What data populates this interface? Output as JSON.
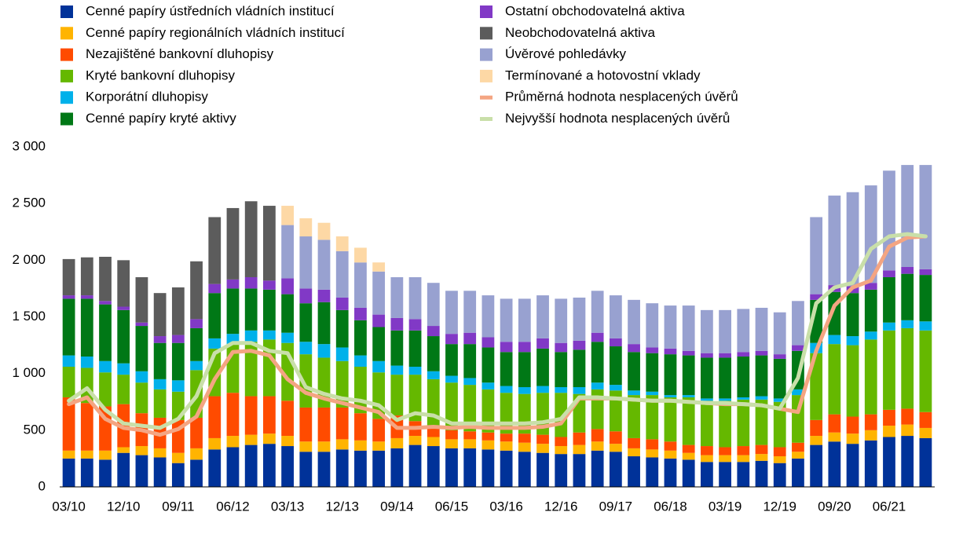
{
  "chart_data": {
    "type": "bar",
    "stacked": true,
    "categories": [
      "03/10",
      null,
      null,
      "12/10",
      null,
      null,
      "09/11",
      null,
      null,
      "06/12",
      null,
      null,
      "03/13",
      null,
      null,
      "12/13",
      null,
      null,
      "09/14",
      null,
      null,
      "06/15",
      null,
      null,
      "03/16",
      null,
      null,
      "12/16",
      null,
      null,
      "09/17",
      null,
      null,
      "06/18",
      null,
      null,
      "03/19",
      null,
      null,
      "12/19",
      null,
      null,
      "09/20",
      null,
      null,
      "06/21",
      null,
      null
    ],
    "ylim": [
      0,
      3000
    ],
    "yticks": [
      0,
      500,
      {
        "value": 1000,
        "label": "1 000"
      },
      {
        "value": 1500,
        "label": "1 500"
      },
      {
        "value": 2000,
        "label": "2 000"
      },
      {
        "value": 2500,
        "label": "2 500"
      },
      {
        "value": 3000,
        "label": "3 000"
      }
    ],
    "series": [
      {
        "name": "Cenné papíry ústředních vládních institucí",
        "type": "bar",
        "color": "#003299",
        "values": [
          250,
          250,
          240,
          300,
          280,
          260,
          210,
          240,
          330,
          350,
          370,
          380,
          360,
          310,
          310,
          330,
          320,
          320,
          340,
          370,
          360,
          340,
          340,
          330,
          320,
          310,
          300,
          290,
          290,
          320,
          310,
          270,
          260,
          250,
          240,
          220,
          220,
          220,
          230,
          210,
          250,
          370,
          400,
          380,
          410,
          440,
          450,
          430
        ]
      },
      {
        "name": "Cenné papíry regionálních vládních institucí",
        "type": "bar",
        "color": "#ffb400",
        "values": [
          70,
          70,
          80,
          50,
          80,
          80,
          90,
          100,
          100,
          100,
          90,
          90,
          90,
          90,
          90,
          90,
          90,
          80,
          90,
          80,
          80,
          80,
          80,
          80,
          80,
          80,
          80,
          70,
          80,
          80,
          70,
          70,
          70,
          70,
          60,
          60,
          60,
          60,
          60,
          60,
          60,
          80,
          80,
          90,
          90,
          100,
          100,
          90
        ]
      },
      {
        "name": "Nezajištěné bankovní dluhopisy",
        "type": "bar",
        "color": "#ff4b00",
        "values": [
          470,
          420,
          390,
          380,
          290,
          270,
          290,
          270,
          370,
          380,
          340,
          330,
          310,
          300,
          300,
          280,
          240,
          200,
          200,
          130,
          100,
          80,
          70,
          70,
          70,
          80,
          80,
          80,
          110,
          110,
          110,
          90,
          90,
          80,
          70,
          80,
          70,
          80,
          80,
          80,
          80,
          140,
          160,
          150,
          140,
          140,
          140,
          140
        ]
      },
      {
        "name": "Kryté bankovní dluhopisy",
        "type": "bar",
        "color": "#65b800",
        "values": [
          270,
          310,
          300,
          260,
          270,
          250,
          250,
          420,
          420,
          430,
          480,
          500,
          510,
          470,
          440,
          410,
          410,
          410,
          360,
          410,
          410,
          420,
          410,
          380,
          360,
          350,
          370,
          390,
          340,
          350,
          360,
          380,
          390,
          390,
          420,
          400,
          410,
          410,
          400,
          400,
          420,
          590,
          620,
          630,
          660,
          700,
          710,
          720
        ]
      },
      {
        "name": "Korporátní dluhopisy",
        "type": "bar",
        "color": "#00b1ea",
        "values": [
          100,
          100,
          100,
          100,
          100,
          90,
          100,
          80,
          90,
          90,
          100,
          80,
          90,
          110,
          120,
          120,
          100,
          100,
          80,
          70,
          70,
          60,
          60,
          60,
          60,
          60,
          60,
          50,
          60,
          60,
          50,
          40,
          30,
          20,
          20,
          20,
          20,
          20,
          30,
          30,
          50,
          90,
          80,
          80,
          70,
          70,
          70,
          80
        ]
      },
      {
        "name": "Cenné papíry kryté aktivy",
        "type": "bar",
        "color": "#007816",
        "values": [
          500,
          510,
          500,
          470,
          400,
          320,
          330,
          290,
          400,
          400,
          370,
          360,
          340,
          340,
          370,
          330,
          310,
          300,
          310,
          320,
          310,
          280,
          300,
          310,
          300,
          310,
          330,
          310,
          330,
          360,
          340,
          340,
          340,
          360,
          350,
          360,
          360,
          360,
          360,
          350,
          340,
          380,
          380,
          380,
          370,
          400,
          410,
          410
        ]
      },
      {
        "name": "Ostatní obchodovatelná aktiva",
        "type": "bar",
        "color": "#8139c6",
        "values": [
          30,
          30,
          30,
          30,
          30,
          60,
          70,
          80,
          80,
          80,
          100,
          80,
          140,
          130,
          110,
          110,
          110,
          110,
          110,
          100,
          90,
          90,
          100,
          90,
          90,
          90,
          90,
          80,
          80,
          80,
          70,
          70,
          50,
          50,
          40,
          40,
          40,
          40,
          40,
          40,
          50,
          50,
          60,
          60,
          60,
          60,
          60,
          50
        ]
      },
      {
        "name": "Neobchodovatelná aktiva",
        "type": "bar",
        "color": "#5c5c5c",
        "values": [
          320,
          335,
          390,
          410,
          400,
          380,
          420,
          510,
          590,
          630,
          670,
          660,
          0,
          0,
          0,
          0,
          0,
          0,
          0,
          0,
          0,
          0,
          0,
          0,
          0,
          0,
          0,
          0,
          0,
          0,
          0,
          0,
          0,
          0,
          0,
          0,
          0,
          0,
          0,
          0,
          0,
          0,
          0,
          0,
          0,
          0,
          0,
          0
        ]
      },
      {
        "name": "Úvěrové pohledávky",
        "type": "bar",
        "color": "#98a1d0",
        "values": [
          0,
          0,
          0,
          0,
          0,
          0,
          0,
          0,
          0,
          0,
          0,
          0,
          470,
          460,
          440,
          410,
          400,
          380,
          360,
          370,
          380,
          380,
          370,
          370,
          380,
          380,
          380,
          390,
          380,
          370,
          380,
          390,
          390,
          380,
          400,
          380,
          380,
          380,
          380,
          370,
          390,
          680,
          790,
          830,
          860,
          880,
          900,
          920
        ]
      },
      {
        "name": "Termínované a hotovostní vklady",
        "type": "bar",
        "color": "#fdd8a5",
        "values": [
          0,
          0,
          0,
          0,
          0,
          0,
          0,
          0,
          0,
          0,
          0,
          0,
          170,
          160,
          150,
          130,
          130,
          80,
          0,
          0,
          0,
          0,
          0,
          0,
          0,
          0,
          0,
          0,
          0,
          0,
          0,
          0,
          0,
          0,
          0,
          0,
          0,
          0,
          0,
          0,
          0,
          0,
          0,
          0,
          0,
          0,
          0,
          0
        ]
      },
      {
        "name": "Průměrná hodnota nesplacených úvěrů",
        "type": "line",
        "color": "#f4a582",
        "values": [
          730,
          790,
          600,
          520,
          500,
          460,
          510,
          620,
          950,
          1190,
          1200,
          1160,
          950,
          830,
          780,
          740,
          700,
          660,
          520,
          520,
          530,
          520,
          530,
          520,
          520,
          520,
          530,
          560,
          780,
          780,
          780,
          770,
          760,
          760,
          750,
          740,
          730,
          730,
          720,
          690,
          660,
          1200,
          1600,
          1760,
          1820,
          2120,
          2200,
          2210
        ]
      },
      {
        "name": "Nejvyšší hodnota nesplacených úvěrů",
        "type": "line",
        "color": "#c9dfa9",
        "values": [
          760,
          870,
          680,
          560,
          540,
          520,
          600,
          800,
          1180,
          1270,
          1270,
          1200,
          1180,
          880,
          820,
          780,
          760,
          720,
          590,
          650,
          630,
          560,
          560,
          560,
          560,
          560,
          570,
          600,
          790,
          790,
          780,
          770,
          760,
          760,
          750,
          740,
          740,
          730,
          720,
          690,
          960,
          1620,
          1760,
          1800,
          2100,
          2210,
          2230,
          2210
        ]
      }
    ]
  }
}
